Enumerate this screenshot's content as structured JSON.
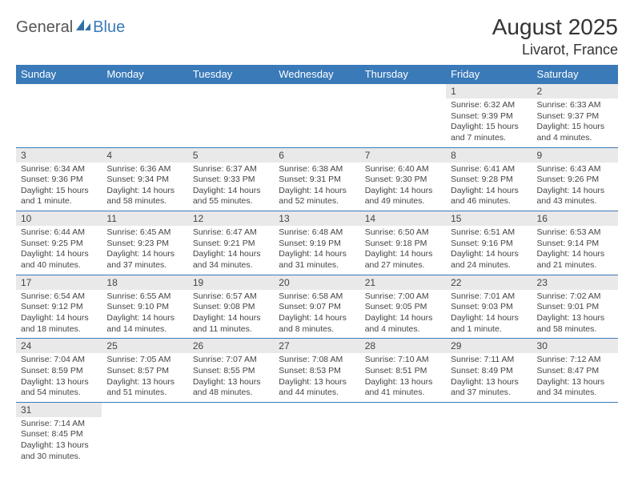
{
  "brand": {
    "part1": "General",
    "part2": "Blue"
  },
  "title": "August 2025",
  "location": "Livarot, France",
  "colors": {
    "header_bg": "#3a7ab8",
    "header_fg": "#ffffff",
    "daynum_bg": "#e9e9e9",
    "border": "#3a7ab8",
    "text": "#444444",
    "background": "#ffffff"
  },
  "typography": {
    "title_fontsize": 28,
    "location_fontsize": 18,
    "header_fontsize": 13,
    "daynum_fontsize": 12,
    "body_fontsize": 10.5
  },
  "day_headers": [
    "Sunday",
    "Monday",
    "Tuesday",
    "Wednesday",
    "Thursday",
    "Friday",
    "Saturday"
  ],
  "weeks": [
    [
      {
        "n": "",
        "sr": "",
        "ss": "",
        "dl": ""
      },
      {
        "n": "",
        "sr": "",
        "ss": "",
        "dl": ""
      },
      {
        "n": "",
        "sr": "",
        "ss": "",
        "dl": ""
      },
      {
        "n": "",
        "sr": "",
        "ss": "",
        "dl": ""
      },
      {
        "n": "",
        "sr": "",
        "ss": "",
        "dl": ""
      },
      {
        "n": "1",
        "sr": "Sunrise: 6:32 AM",
        "ss": "Sunset: 9:39 PM",
        "dl": "Daylight: 15 hours and 7 minutes."
      },
      {
        "n": "2",
        "sr": "Sunrise: 6:33 AM",
        "ss": "Sunset: 9:37 PM",
        "dl": "Daylight: 15 hours and 4 minutes."
      }
    ],
    [
      {
        "n": "3",
        "sr": "Sunrise: 6:34 AM",
        "ss": "Sunset: 9:36 PM",
        "dl": "Daylight: 15 hours and 1 minute."
      },
      {
        "n": "4",
        "sr": "Sunrise: 6:36 AM",
        "ss": "Sunset: 9:34 PM",
        "dl": "Daylight: 14 hours and 58 minutes."
      },
      {
        "n": "5",
        "sr": "Sunrise: 6:37 AM",
        "ss": "Sunset: 9:33 PM",
        "dl": "Daylight: 14 hours and 55 minutes."
      },
      {
        "n": "6",
        "sr": "Sunrise: 6:38 AM",
        "ss": "Sunset: 9:31 PM",
        "dl": "Daylight: 14 hours and 52 minutes."
      },
      {
        "n": "7",
        "sr": "Sunrise: 6:40 AM",
        "ss": "Sunset: 9:30 PM",
        "dl": "Daylight: 14 hours and 49 minutes."
      },
      {
        "n": "8",
        "sr": "Sunrise: 6:41 AM",
        "ss": "Sunset: 9:28 PM",
        "dl": "Daylight: 14 hours and 46 minutes."
      },
      {
        "n": "9",
        "sr": "Sunrise: 6:43 AM",
        "ss": "Sunset: 9:26 PM",
        "dl": "Daylight: 14 hours and 43 minutes."
      }
    ],
    [
      {
        "n": "10",
        "sr": "Sunrise: 6:44 AM",
        "ss": "Sunset: 9:25 PM",
        "dl": "Daylight: 14 hours and 40 minutes."
      },
      {
        "n": "11",
        "sr": "Sunrise: 6:45 AM",
        "ss": "Sunset: 9:23 PM",
        "dl": "Daylight: 14 hours and 37 minutes."
      },
      {
        "n": "12",
        "sr": "Sunrise: 6:47 AM",
        "ss": "Sunset: 9:21 PM",
        "dl": "Daylight: 14 hours and 34 minutes."
      },
      {
        "n": "13",
        "sr": "Sunrise: 6:48 AM",
        "ss": "Sunset: 9:19 PM",
        "dl": "Daylight: 14 hours and 31 minutes."
      },
      {
        "n": "14",
        "sr": "Sunrise: 6:50 AM",
        "ss": "Sunset: 9:18 PM",
        "dl": "Daylight: 14 hours and 27 minutes."
      },
      {
        "n": "15",
        "sr": "Sunrise: 6:51 AM",
        "ss": "Sunset: 9:16 PM",
        "dl": "Daylight: 14 hours and 24 minutes."
      },
      {
        "n": "16",
        "sr": "Sunrise: 6:53 AM",
        "ss": "Sunset: 9:14 PM",
        "dl": "Daylight: 14 hours and 21 minutes."
      }
    ],
    [
      {
        "n": "17",
        "sr": "Sunrise: 6:54 AM",
        "ss": "Sunset: 9:12 PM",
        "dl": "Daylight: 14 hours and 18 minutes."
      },
      {
        "n": "18",
        "sr": "Sunrise: 6:55 AM",
        "ss": "Sunset: 9:10 PM",
        "dl": "Daylight: 14 hours and 14 minutes."
      },
      {
        "n": "19",
        "sr": "Sunrise: 6:57 AM",
        "ss": "Sunset: 9:08 PM",
        "dl": "Daylight: 14 hours and 11 minutes."
      },
      {
        "n": "20",
        "sr": "Sunrise: 6:58 AM",
        "ss": "Sunset: 9:07 PM",
        "dl": "Daylight: 14 hours and 8 minutes."
      },
      {
        "n": "21",
        "sr": "Sunrise: 7:00 AM",
        "ss": "Sunset: 9:05 PM",
        "dl": "Daylight: 14 hours and 4 minutes."
      },
      {
        "n": "22",
        "sr": "Sunrise: 7:01 AM",
        "ss": "Sunset: 9:03 PM",
        "dl": "Daylight: 14 hours and 1 minute."
      },
      {
        "n": "23",
        "sr": "Sunrise: 7:02 AM",
        "ss": "Sunset: 9:01 PM",
        "dl": "Daylight: 13 hours and 58 minutes."
      }
    ],
    [
      {
        "n": "24",
        "sr": "Sunrise: 7:04 AM",
        "ss": "Sunset: 8:59 PM",
        "dl": "Daylight: 13 hours and 54 minutes."
      },
      {
        "n": "25",
        "sr": "Sunrise: 7:05 AM",
        "ss": "Sunset: 8:57 PM",
        "dl": "Daylight: 13 hours and 51 minutes."
      },
      {
        "n": "26",
        "sr": "Sunrise: 7:07 AM",
        "ss": "Sunset: 8:55 PM",
        "dl": "Daylight: 13 hours and 48 minutes."
      },
      {
        "n": "27",
        "sr": "Sunrise: 7:08 AM",
        "ss": "Sunset: 8:53 PM",
        "dl": "Daylight: 13 hours and 44 minutes."
      },
      {
        "n": "28",
        "sr": "Sunrise: 7:10 AM",
        "ss": "Sunset: 8:51 PM",
        "dl": "Daylight: 13 hours and 41 minutes."
      },
      {
        "n": "29",
        "sr": "Sunrise: 7:11 AM",
        "ss": "Sunset: 8:49 PM",
        "dl": "Daylight: 13 hours and 37 minutes."
      },
      {
        "n": "30",
        "sr": "Sunrise: 7:12 AM",
        "ss": "Sunset: 8:47 PM",
        "dl": "Daylight: 13 hours and 34 minutes."
      }
    ],
    [
      {
        "n": "31",
        "sr": "Sunrise: 7:14 AM",
        "ss": "Sunset: 8:45 PM",
        "dl": "Daylight: 13 hours and 30 minutes."
      },
      {
        "n": "",
        "sr": "",
        "ss": "",
        "dl": ""
      },
      {
        "n": "",
        "sr": "",
        "ss": "",
        "dl": ""
      },
      {
        "n": "",
        "sr": "",
        "ss": "",
        "dl": ""
      },
      {
        "n": "",
        "sr": "",
        "ss": "",
        "dl": ""
      },
      {
        "n": "",
        "sr": "",
        "ss": "",
        "dl": ""
      },
      {
        "n": "",
        "sr": "",
        "ss": "",
        "dl": ""
      }
    ]
  ]
}
